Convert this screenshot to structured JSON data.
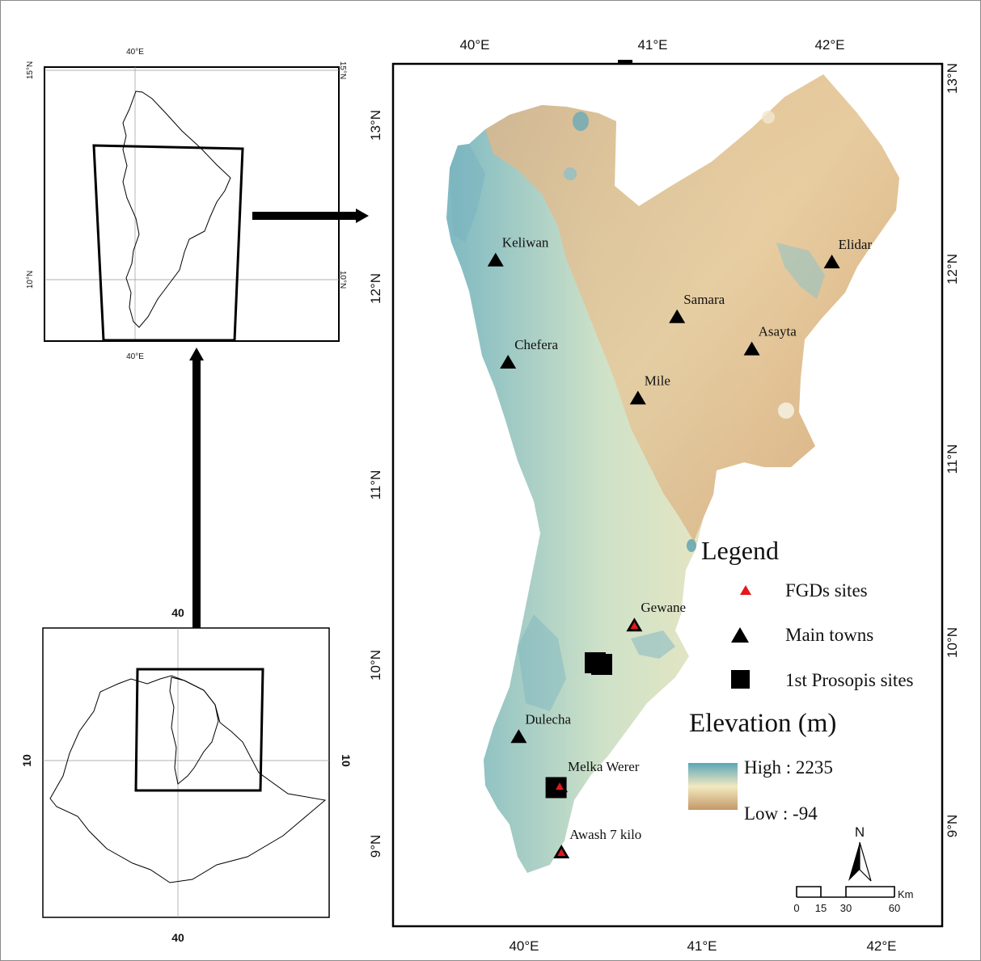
{
  "colors": {
    "elev_high": "#5aa6b8",
    "elev_mid": "#f2e9c0",
    "elev_low": "#c49868",
    "fgd_marker": "#e3191c",
    "town_marker": "#000000",
    "site_marker": "#000000"
  },
  "inset_region": {
    "lon_top": "40°E",
    "lon_bottom": "40°E",
    "lat_15_left": "15°N",
    "lat_15_right": "15°N",
    "lat_10_left": "10°N",
    "lat_10_right": "10°N"
  },
  "inset_country": {
    "lon_top": "40",
    "lon_bottom": "40",
    "lat_left": "10",
    "lat_right": "10"
  },
  "main_map": {
    "top_lon_labels": [
      "40°E",
      "41°E",
      "42°E"
    ],
    "bottom_lon_labels": [
      "40°E",
      "41°E",
      "42°E"
    ],
    "left_lat_labels": [
      "13°N",
      "12°N",
      "11°N",
      "10°N",
      "9°N"
    ],
    "right_lat_labels": [
      "13°N",
      "12°N",
      "11°N",
      "10°N",
      "9°N"
    ],
    "towns": [
      {
        "name": "Keliwan",
        "lon": 39.84,
        "lat": 12.1
      },
      {
        "name": "Chefera",
        "lon": 39.91,
        "lat": 11.56
      },
      {
        "name": "Mile",
        "lon": 40.64,
        "lat": 11.37
      },
      {
        "name": "Samara",
        "lon": 40.86,
        "lat": 11.8
      },
      {
        "name": "Asayta",
        "lon": 41.28,
        "lat": 11.63
      },
      {
        "name": "Elidar",
        "lon": 41.73,
        "lat": 12.09
      },
      {
        "name": "Gewane",
        "lon": 40.62,
        "lat": 10.17
      },
      {
        "name": "Dulecha",
        "lon": 39.97,
        "lat": 9.58
      },
      {
        "name": "Melka Werer",
        "lon": 40.2,
        "lat": 9.32
      },
      {
        "name": "Awash 7 kilo",
        "lon": 40.21,
        "lat": 8.97
      }
    ],
    "fgd_sites": [
      "Gewane",
      "Melka Werer",
      "Awash 7 kilo"
    ],
    "prosopis_sites": [
      {
        "lon": 40.4,
        "lat": 9.97
      },
      {
        "lon": 40.18,
        "lat": 9.31
      }
    ]
  },
  "legend": {
    "title": "Legend",
    "items": [
      {
        "label": "FGDs sites"
      },
      {
        "label": "Main towns"
      },
      {
        "label": "1st Prosopis sites"
      }
    ],
    "elevation_title": "Elevation (m)",
    "high_label": "High : 2235",
    "low_label": "Low : -94",
    "high_value": 2235,
    "low_value": -94
  },
  "north_arrow": {
    "label": "N"
  },
  "scale_bar": {
    "ticks": [
      "0",
      "15",
      "30",
      "60"
    ],
    "unit": "Km"
  }
}
